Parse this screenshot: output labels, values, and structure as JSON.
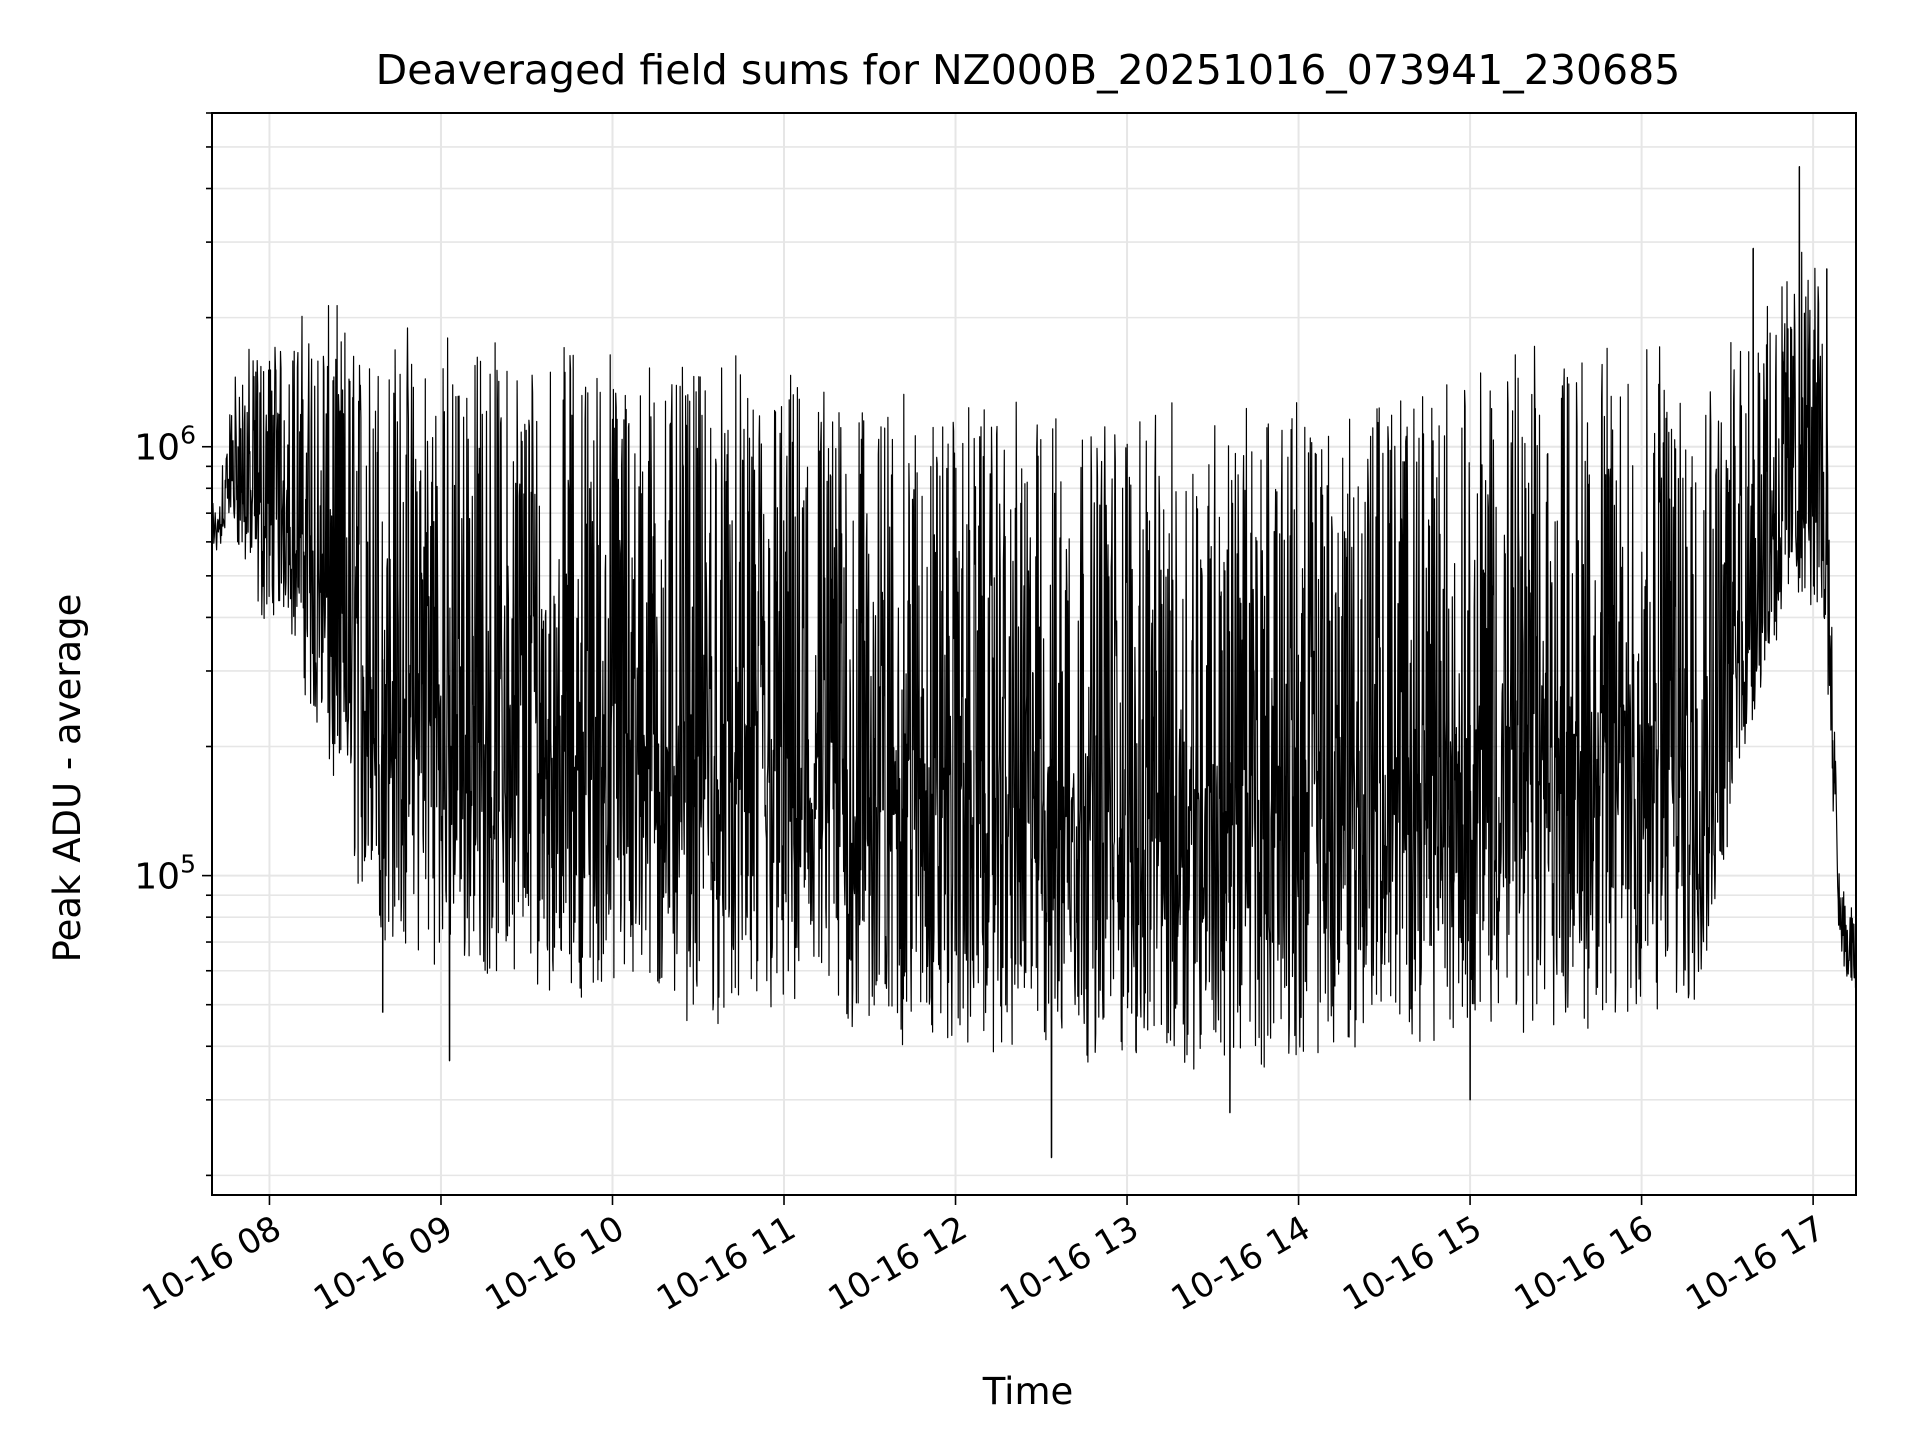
{
  "chart_data": {
    "type": "line",
    "title": "Deaveraged field sums for NZ000B_20251016_073941_230685",
    "xlabel": "Time",
    "ylabel": "Peak ADU - average",
    "yscale": "log",
    "grid": true,
    "ylim": [
      18000,
      6000000
    ],
    "xlim_hours": [
      7.665,
      17.25
    ],
    "x_ticks": [
      {
        "hour": 8,
        "label": "10-16 08"
      },
      {
        "hour": 9,
        "label": "10-16 09"
      },
      {
        "hour": 10,
        "label": "10-16 10"
      },
      {
        "hour": 11,
        "label": "10-16 11"
      },
      {
        "hour": 12,
        "label": "10-16 12"
      },
      {
        "hour": 13,
        "label": "10-16 13"
      },
      {
        "hour": 14,
        "label": "10-16 14"
      },
      {
        "hour": 15,
        "label": "10-16 15"
      },
      {
        "hour": 16,
        "label": "10-16 16"
      },
      {
        "hour": 17,
        "label": "10-16 17"
      }
    ],
    "y_ticks": [
      {
        "value": 100000,
        "base": "10",
        "exp": "5"
      },
      {
        "value": 1000000,
        "base": "10",
        "exp": "6"
      }
    ],
    "series": [
      {
        "name": "Peak ADU - average",
        "color": "#000000",
        "envelope_hours": [
          7.665,
          7.8,
          7.95,
          8.1,
          8.3,
          8.6,
          9.0,
          9.5,
          10.0,
          10.5,
          11.0,
          11.5,
          12.0,
          12.5,
          13.0,
          13.5,
          14.0,
          14.5,
          15.0,
          15.5,
          16.0,
          16.3,
          16.5,
          16.7,
          16.85,
          16.95,
          17.05,
          17.1,
          17.15,
          17.2,
          17.25
        ],
        "envelope_low": [
          520000,
          600000,
          380000,
          400000,
          180000,
          70000,
          60000,
          55000,
          50000,
          45000,
          42000,
          40000,
          38000,
          37000,
          36000,
          35000,
          36000,
          40000,
          42000,
          43000,
          43000,
          45000,
          100000,
          250000,
          400000,
          420000,
          400000,
          200000,
          70000,
          52000,
          50000
        ],
        "envelope_high": [
          650000,
          1200000,
          1400000,
          1500000,
          1650000,
          1500000,
          1450000,
          1400000,
          1350000,
          1250000,
          1150000,
          1050000,
          1000000,
          950000,
          950000,
          950000,
          1000000,
          1100000,
          1200000,
          1300000,
          1350000,
          1400000,
          1300000,
          1700000,
          2000000,
          2200000,
          2000000,
          700000,
          90000,
          80000,
          70000
        ],
        "spikes": [
          {
            "hour": 12.56,
            "value": 22000
          },
          {
            "hour": 16.92,
            "value": 4500000
          },
          {
            "hour": 17.08,
            "value": 2600000
          },
          {
            "hour": 16.65,
            "value": 2900000
          },
          {
            "hour": 16.87,
            "value": 1900000
          },
          {
            "hour": 15.0,
            "value": 30000
          },
          {
            "hour": 8.66,
            "value": 48000
          },
          {
            "hour": 9.05,
            "value": 37000
          },
          {
            "hour": 13.6,
            "value": 28000
          }
        ]
      }
    ]
  }
}
